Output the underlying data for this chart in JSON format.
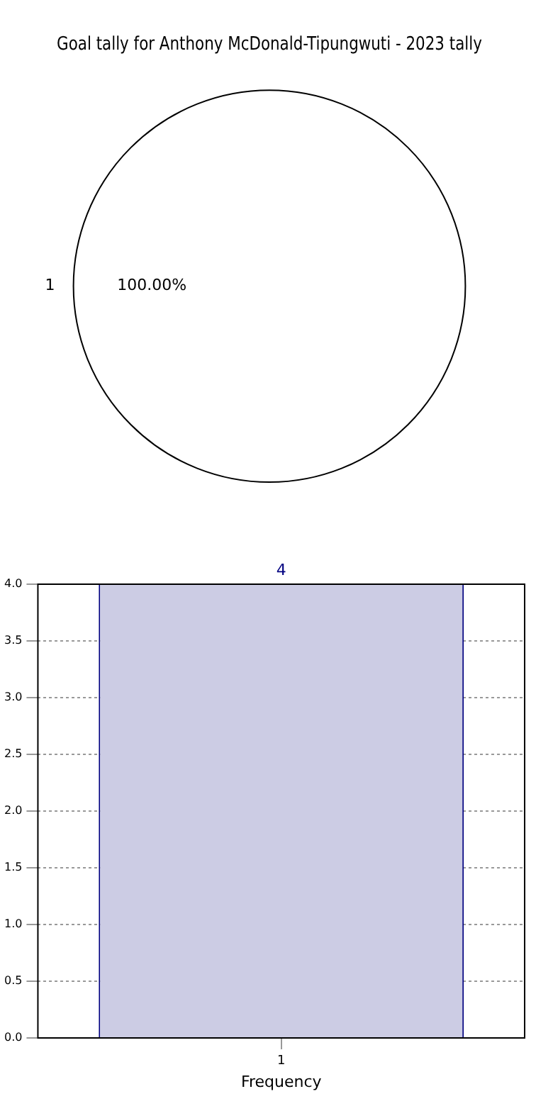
{
  "chart_data": [
    {
      "type": "pie",
      "title": "Goal tally for Anthony McDonald-Tipungwuti - 2023 tally",
      "categories": [
        "1"
      ],
      "values": [
        100
      ],
      "colors": [
        "#ffffff"
      ],
      "value_labels": [
        "100.00%"
      ],
      "legend": false
    },
    {
      "type": "bar",
      "categories": [
        "1"
      ],
      "values": [
        4
      ],
      "color": "#cccce4",
      "xlabel": "Frequency",
      "ylim": [
        0,
        4
      ],
      "yticks": [
        {
          "value": 0,
          "label": "0.0"
        },
        {
          "value": 0.5,
          "label": "0.5"
        },
        {
          "value": 1,
          "label": "1.0"
        },
        {
          "value": 1.5,
          "label": "1.5"
        },
        {
          "value": 2,
          "label": "2.0"
        },
        {
          "value": 2.5,
          "label": "2.5"
        },
        {
          "value": 3,
          "label": "3.0"
        },
        {
          "value": 3.5,
          "label": "3.5"
        },
        {
          "value": 4,
          "label": "4.0"
        }
      ],
      "grid": true,
      "data_labels": true,
      "legend": false
    }
  ]
}
